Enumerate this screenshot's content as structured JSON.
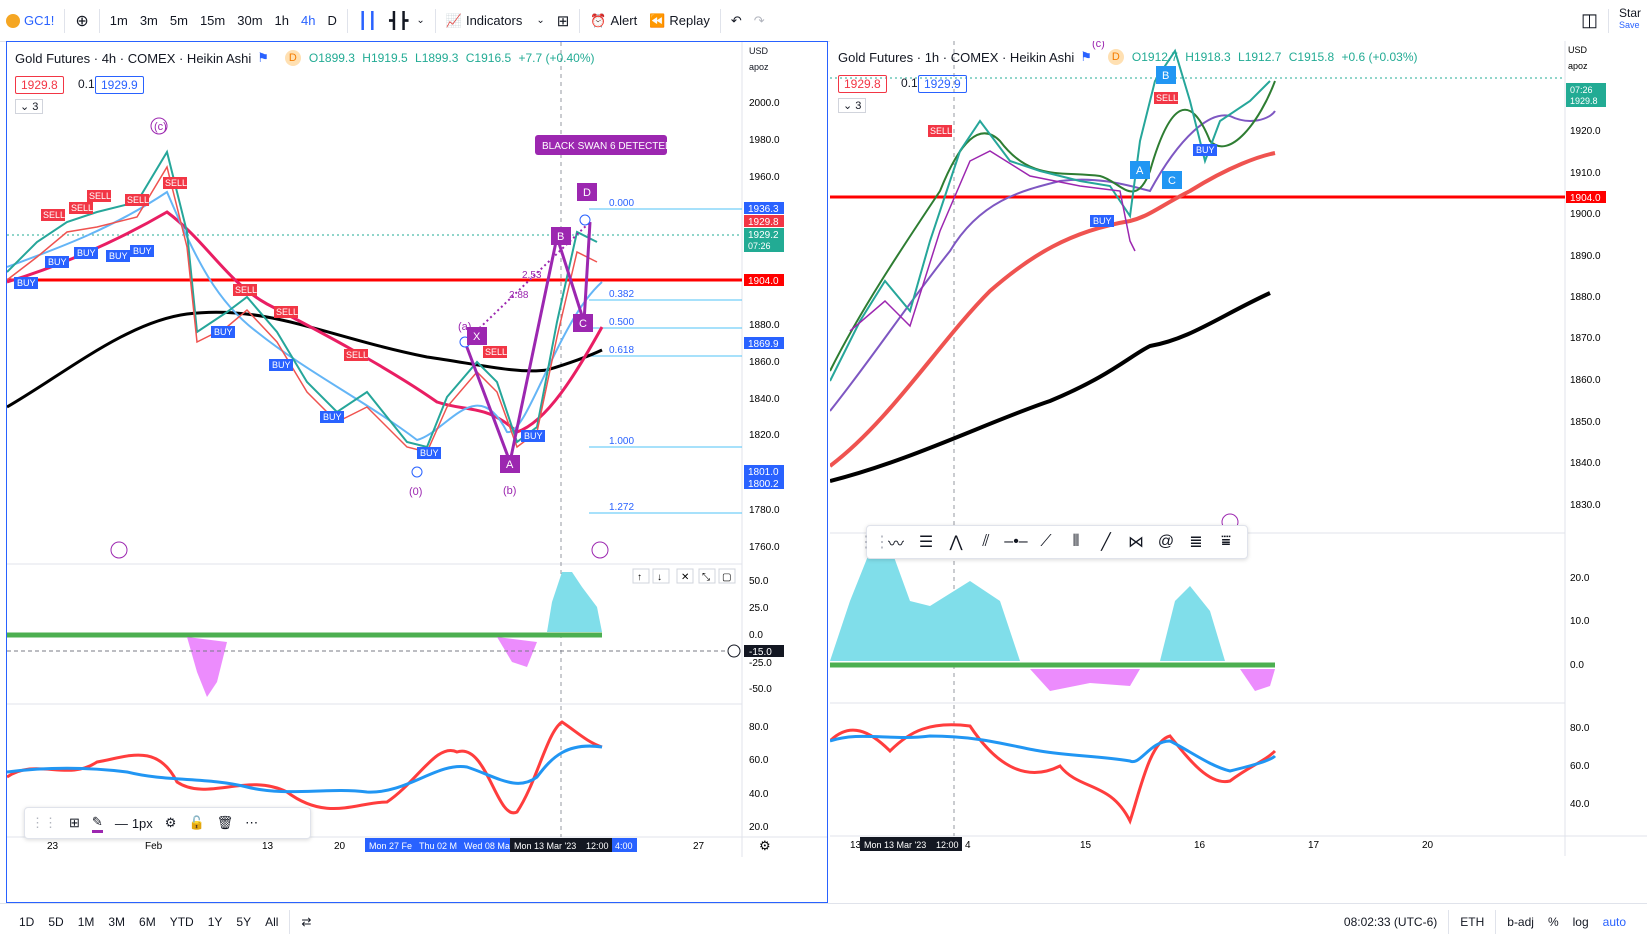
{
  "toolbar": {
    "symbol": "GC1!",
    "intervals": [
      "1m",
      "3m",
      "5m",
      "15m",
      "30m",
      "1h",
      "4h",
      "D"
    ],
    "active_interval": "4h",
    "indicators_label": "Indicators",
    "alert_label": "Alert",
    "replay_label": "Replay",
    "star_label": "Star",
    "save_label": "Save"
  },
  "left_chart": {
    "title": "Gold Futures · 4h · COMEX · Heikin Ashi",
    "ohlc": {
      "open": "O1899.3",
      "high": "H1919.5",
      "low": "L1899.3",
      "close": "C1916.5",
      "change": "+7.7 (+0.40%)"
    },
    "badge": "D",
    "sell_price": "1929.8",
    "step": "0.1",
    "buy_price": "1929.9",
    "collapse_count": "3",
    "currency": "USD",
    "axis_mode": "apoz",
    "price_ticks": [
      "2000.0",
      "1980.0",
      "1960.0",
      "1880.0",
      "1860.0",
      "1840.0",
      "1820.0",
      "1780.0",
      "1760.0"
    ],
    "price_labels": {
      "a": "1936.3",
      "b": "1929.8",
      "c": "1929.2",
      "timer": "07:26",
      "d": "1904.0",
      "e": "1869.9",
      "f": "1801.0",
      "g": "1800.2"
    },
    "osc_ticks": [
      "50.0",
      "25.0",
      "0.0",
      "-25.0",
      "-50.0"
    ],
    "osc_value": "-15.0",
    "rsi_ticks": [
      "80.0",
      "60.0",
      "40.0",
      "20.0"
    ],
    "time_ticks": [
      "23",
      "Feb",
      "13",
      "20",
      "27"
    ],
    "time_highlights": [
      "Mon 27 Fe",
      "Thu 02 M",
      "Wed 08 Ma",
      "Mon 13 Mar '23",
      "12:00",
      "4:00"
    ],
    "fib_levels": [
      "0.000",
      "0.382",
      "0.500",
      "0.618",
      "1.000",
      "1.272"
    ],
    "harmonic_label": "BLACK SWAN 6 DETECTED",
    "wave_labels": [
      "(c)",
      "(a)",
      "(b)",
      "(0)"
    ],
    "pattern_points": [
      "D",
      "B",
      "X",
      "C",
      "A"
    ],
    "ratios": [
      "2.53",
      "2.88"
    ],
    "signals_sell": [
      "SELL",
      "SELL",
      "SELL",
      "SELL",
      "SELL",
      "SELL",
      "SELL",
      "SELL",
      "SELL"
    ],
    "signals_buy": [
      "BUY",
      "BUY",
      "BUY",
      "BUY",
      "BUY",
      "BUY",
      "BUY",
      "BUY",
      "BUY",
      "BUY"
    ]
  },
  "right_chart": {
    "title": "Gold Futures · 1h · COMEX · Heikin Ashi",
    "ohlc": {
      "open": "O1912.7",
      "high": "H1918.3",
      "low": "L1912.7",
      "close": "C1915.8",
      "change": "+0.6 (+0.03%)"
    },
    "badge": "D",
    "sell_price": "1929.8",
    "step": "0.1",
    "buy_price": "1929.9",
    "collapse_count": "3",
    "currency": "USD",
    "axis_mode": "apoz",
    "price_ticks": [
      "1920.0",
      "1910.0",
      "1900.0",
      "1890.0",
      "1880.0",
      "1870.0",
      "1860.0",
      "1850.0",
      "1840.0",
      "1830.0"
    ],
    "price_labels": {
      "timer": "07:26",
      "last": "1929.8",
      "line": "1904.0"
    },
    "osc_ticks": [
      "20.0",
      "10.0",
      "0.0"
    ],
    "rsi_ticks": [
      "80.0",
      "60.0",
      "40.0"
    ],
    "time_ticks": [
      "13",
      "4",
      "15",
      "16",
      "17",
      "20"
    ],
    "time_highlight": [
      "Mon 13 Mar '23",
      "12:00"
    ],
    "wave_label": "(c)",
    "pattern_points": [
      "B",
      "A",
      "C"
    ],
    "signals_sell": [
      "SELL",
      "SELL"
    ],
    "signals_buy": [
      "BUY",
      "BUY"
    ]
  },
  "drawing_toolbar": {
    "width_label": "1px"
  },
  "bottombar": {
    "ranges": [
      "1D",
      "5D",
      "1M",
      "3M",
      "6M",
      "YTD",
      "1Y",
      "5Y",
      "All"
    ],
    "time": "08:02:33 (UTC-6)",
    "session": "ETH",
    "adj": "b-adj",
    "percent": "%",
    "log": "log",
    "auto": "auto"
  },
  "colors": {
    "accent": "#2962ff",
    "sell": "#f23645",
    "buy": "#2962ff",
    "up": "#22ab94",
    "harmonic": "#9c27b0",
    "hline": "#ff0000"
  }
}
